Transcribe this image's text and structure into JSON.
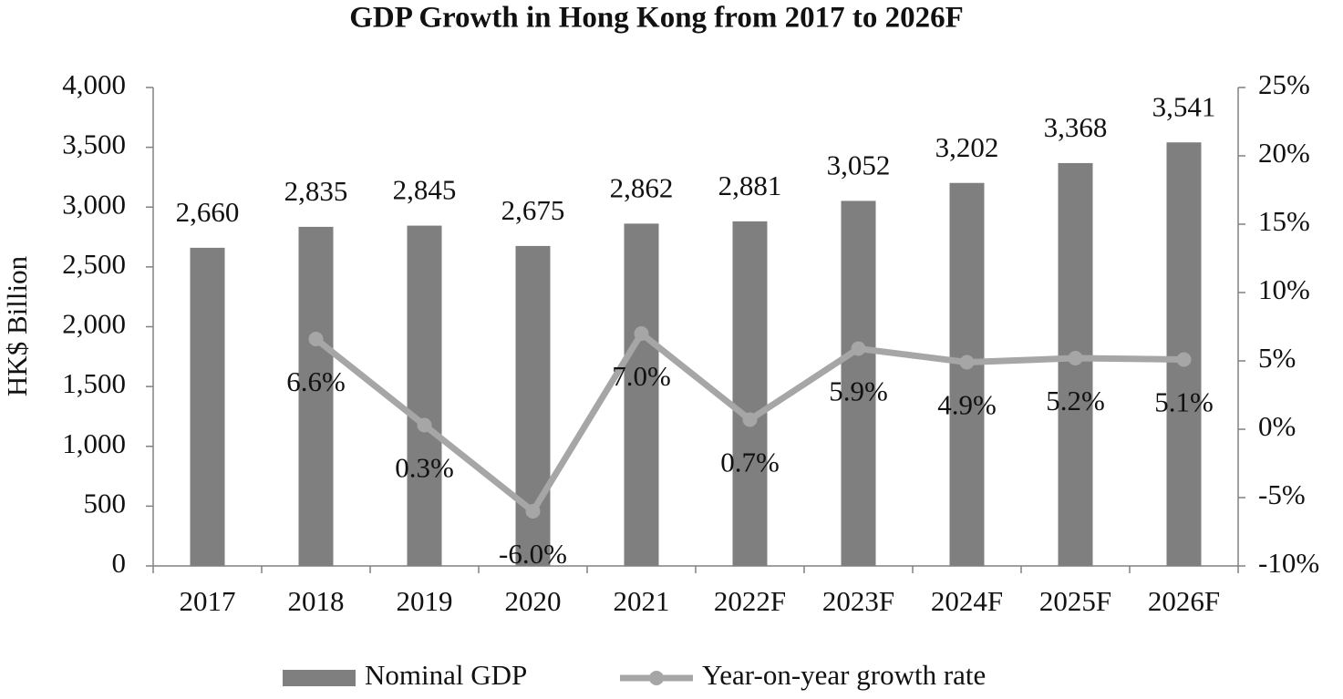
{
  "chart_data": {
    "type": "bar",
    "title": "GDP Growth in Hong Kong from 2017 to 2026F",
    "y_label": "HK$ Billion",
    "categories": [
      "2017",
      "2018",
      "2019",
      "2020",
      "2021",
      "2022F",
      "2023F",
      "2024F",
      "2025F",
      "2026F"
    ],
    "series": [
      {
        "name": "Nominal GDP",
        "type": "bar",
        "color": "#7f7f7f",
        "values": [
          2660,
          2835,
          2845,
          2675,
          2862,
          2881,
          3052,
          3202,
          3368,
          3541
        ],
        "value_labels": [
          "2,660",
          "2,835",
          "2,845",
          "2,675",
          "2,862",
          "2,881",
          "3,052",
          "3,202",
          "3,368",
          "3,541"
        ]
      },
      {
        "name": "Year-on-year growth rate",
        "type": "line",
        "axis": "y2",
        "color": "#a6a6a6",
        "values": [
          null,
          6.6,
          0.3,
          -6.0,
          7.0,
          0.7,
          5.9,
          4.9,
          5.2,
          5.1
        ],
        "value_labels": [
          null,
          "6.6%",
          "0.3%",
          "-6.0%",
          "7.0%",
          "0.7%",
          "5.9%",
          "4.9%",
          "5.2%",
          "5.1%"
        ]
      }
    ],
    "ylim": [
      0,
      4000
    ],
    "yticks": [
      0,
      500,
      {
        "value": 1000,
        "label": "1,000"
      },
      {
        "value": 1500,
        "label": "1,500"
      },
      {
        "value": 2000,
        "label": "2,000"
      },
      {
        "value": 2500,
        "label": "2,500"
      },
      {
        "value": 3000,
        "label": "3,000"
      },
      {
        "value": 3500,
        "label": "3,500"
      },
      {
        "value": 4000,
        "label": "4,000"
      }
    ],
    "y2lim": [
      -10,
      25
    ],
    "y2ticks": [
      {
        "value": -10,
        "label": "-10%"
      },
      {
        "value": -5,
        "label": "-5%"
      },
      {
        "value": 0,
        "label": "0%"
      },
      {
        "value": 5,
        "label": "5%"
      },
      {
        "value": 10,
        "label": "10%"
      },
      {
        "value": 15,
        "label": "15%"
      },
      {
        "value": 20,
        "label": "20%"
      },
      {
        "value": 25,
        "label": "25%"
      }
    ],
    "grid": false,
    "legend": "bottom"
  }
}
